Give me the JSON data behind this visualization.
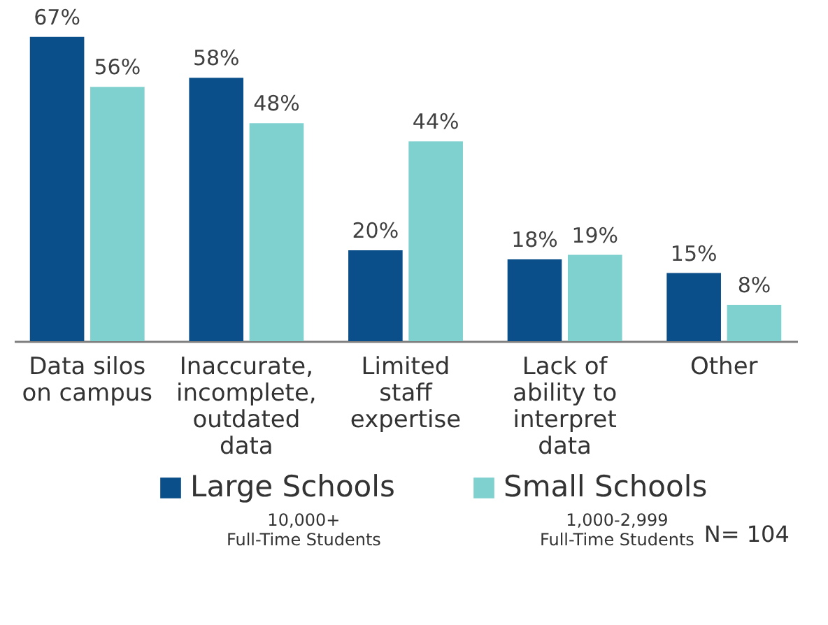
{
  "chart_data": {
    "type": "bar",
    "categories": [
      "Data silos\non campus",
      "Inaccurate,\nincomplete,\noutdated\ndata",
      "Limited\nstaff\nexpertise",
      "Lack of\nability to\ninterpret\ndata",
      "Other"
    ],
    "series": [
      {
        "name": "Large Schools",
        "color": "#0b4f8a",
        "values": [
          67,
          58,
          20,
          18,
          15
        ],
        "value_labels": [
          "67%",
          "58%",
          "20%",
          "18%",
          "15%"
        ]
      },
      {
        "name": "Small Schools",
        "color": "#7fd1cf",
        "values": [
          56,
          48,
          44,
          19,
          8
        ],
        "value_labels": [
          "56%",
          "48%",
          "44%",
          "19%",
          "8%"
        ]
      }
    ],
    "annotations": [
      "10,000+\nFull-Time Students",
      "1,000-2,999\nFull-Time Students",
      "N= 104"
    ],
    "legend": "bottom",
    "grid": false
  }
}
